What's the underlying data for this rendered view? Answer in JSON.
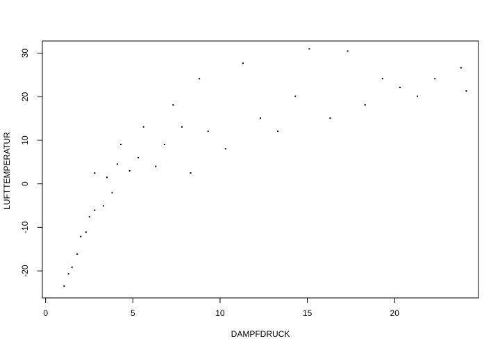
{
  "chart_data": {
    "type": "scatter",
    "title": "",
    "xlabel": "DAMPFDRUCK",
    "ylabel": "LUFTTEMPERATUR",
    "xlim": [
      -0.5,
      24.5
    ],
    "ylim": [
      -26.0,
      32.6
    ],
    "x_ticks": [
      0,
      5,
      10,
      15,
      20
    ],
    "y_ticks": [
      -20,
      -10,
      0,
      10,
      20,
      30
    ],
    "x_tick_labels": [
      "0",
      "5",
      "10",
      "15",
      "20"
    ],
    "y_tick_labels": [
      "-20",
      "-10",
      "0",
      "10",
      "20",
      "30"
    ],
    "grid": false,
    "legend": "none",
    "point_color": "#000000",
    "series": [
      {
        "values": [
          {
            "x": 0.75,
            "y": -23.3
          },
          {
            "x": 1.0,
            "y": -20.5
          },
          {
            "x": 1.2,
            "y": -19.0
          },
          {
            "x": 1.5,
            "y": -16.0
          },
          {
            "x": 1.7,
            "y": -12.0
          },
          {
            "x": 2.0,
            "y": -11.0
          },
          {
            "x": 2.2,
            "y": -7.5
          },
          {
            "x": 2.5,
            "y": -6.0
          },
          {
            "x": 2.5,
            "y": 2.5
          },
          {
            "x": 3.0,
            "y": -5.0
          },
          {
            "x": 3.2,
            "y": 1.5
          },
          {
            "x": 3.5,
            "y": -2.0
          },
          {
            "x": 3.8,
            "y": 4.5
          },
          {
            "x": 4.0,
            "y": 9.0
          },
          {
            "x": 4.5,
            "y": 3.0
          },
          {
            "x": 5.0,
            "y": 6.0
          },
          {
            "x": 5.3,
            "y": 13.0
          },
          {
            "x": 6.0,
            "y": 4.0
          },
          {
            "x": 6.5,
            "y": 9.0
          },
          {
            "x": 7.0,
            "y": 18.0
          },
          {
            "x": 7.5,
            "y": 13.0
          },
          {
            "x": 8.0,
            "y": 2.5
          },
          {
            "x": 8.5,
            "y": 24.0
          },
          {
            "x": 9.0,
            "y": 12.0
          },
          {
            "x": 10.0,
            "y": 8.0
          },
          {
            "x": 11.0,
            "y": 27.5
          },
          {
            "x": 12.0,
            "y": 15.0
          },
          {
            "x": 13.0,
            "y": 12.0
          },
          {
            "x": 14.0,
            "y": 20.0
          },
          {
            "x": 14.8,
            "y": 30.8
          },
          {
            "x": 16.0,
            "y": 15.0
          },
          {
            "x": 17.0,
            "y": 30.3
          },
          {
            "x": 18.0,
            "y": 18.0
          },
          {
            "x": 19.0,
            "y": 24.0
          },
          {
            "x": 20.0,
            "y": 22.0
          },
          {
            "x": 21.0,
            "y": 20.0
          },
          {
            "x": 22.0,
            "y": 24.0
          },
          {
            "x": 23.5,
            "y": 26.5
          },
          {
            "x": 23.8,
            "y": 21.2
          }
        ]
      }
    ]
  }
}
